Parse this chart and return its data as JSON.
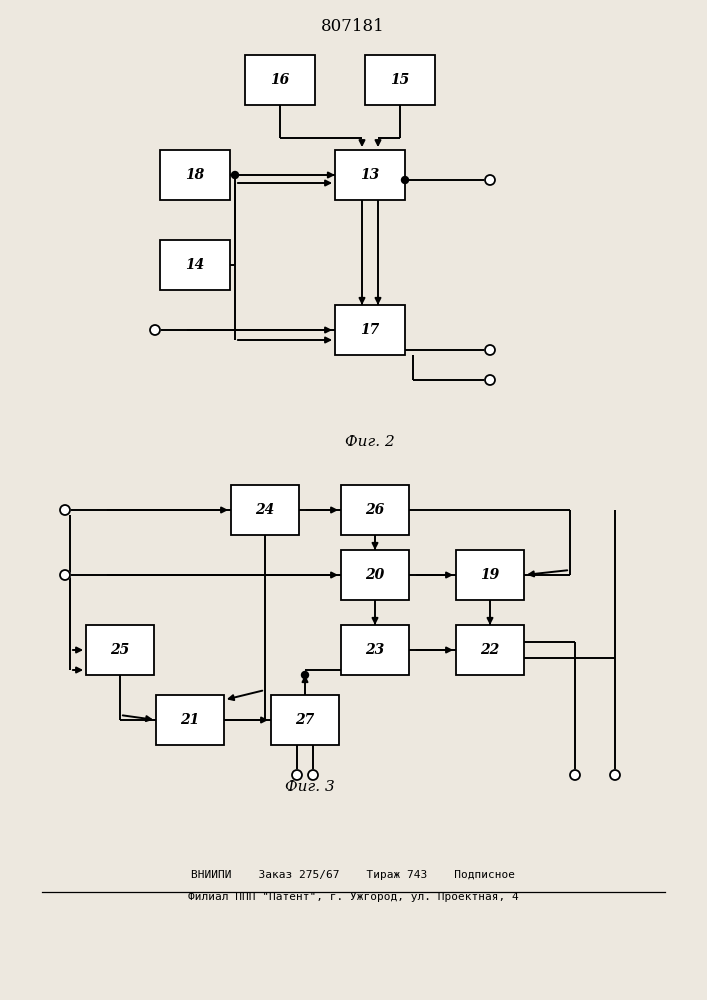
{
  "title": "807181",
  "fig2_label": "Фиг. 2",
  "fig3_label": "Фиг. 3",
  "footer_line1": "ВНИИПИ    Заказ 275/67    Тираж 743    Подписное",
  "footer_line2": "Филиал ППП \"Патент\", г. Ужгород, ул. Проектная, 4",
  "bg": "#ede8df"
}
